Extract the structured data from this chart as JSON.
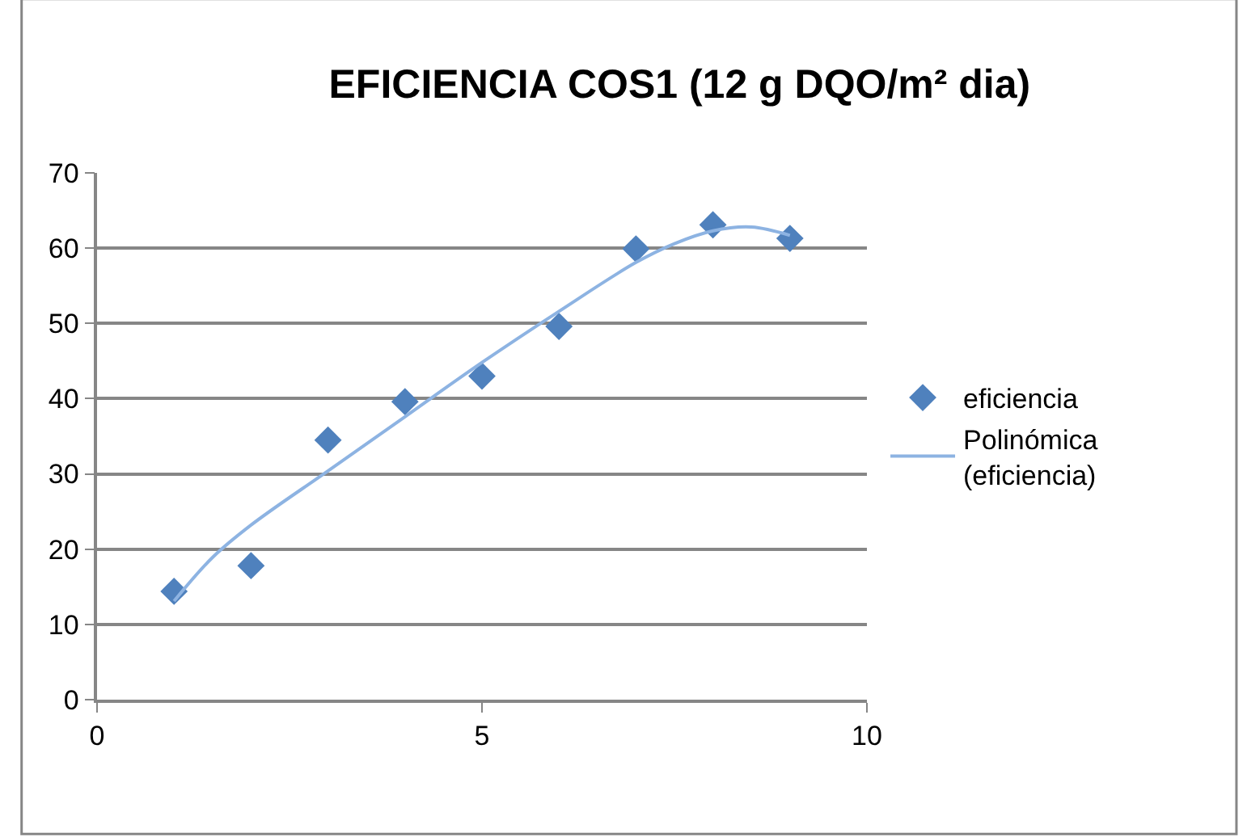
{
  "chart_data": {
    "type": "scatter",
    "title": "EFICIENCIA COS1 (12 g DQO/m² dia)",
    "x": [
      1,
      2,
      3,
      4,
      5,
      6,
      7,
      8,
      9
    ],
    "series": [
      {
        "name": "eficiencia",
        "color": "#4f81bd",
        "marker": "diamond",
        "values": [
          14.4,
          17.8,
          34.5,
          39.6,
          43.0,
          49.6,
          59.9,
          63.1,
          61.3
        ]
      },
      {
        "name": "Polinómica (eficiencia)",
        "type": "line",
        "color": "#8db3e2",
        "marker": "none",
        "line_style": "solid",
        "x": [
          1,
          1.5,
          2,
          3,
          4,
          5,
          6,
          7,
          7.5,
          8,
          8.5,
          9
        ],
        "values": [
          13.1,
          18.9,
          23.2,
          30.4,
          37.6,
          44.8,
          51.6,
          58.1,
          60.6,
          62.3,
          62.8,
          61.7
        ]
      }
    ],
    "xlim": [
      0,
      10
    ],
    "xticks": [
      0,
      5,
      10
    ],
    "ylim": [
      0,
      70
    ],
    "yticks": [
      0,
      10,
      20,
      30,
      40,
      50,
      60,
      70
    ],
    "grid": "y",
    "legend": "right"
  }
}
